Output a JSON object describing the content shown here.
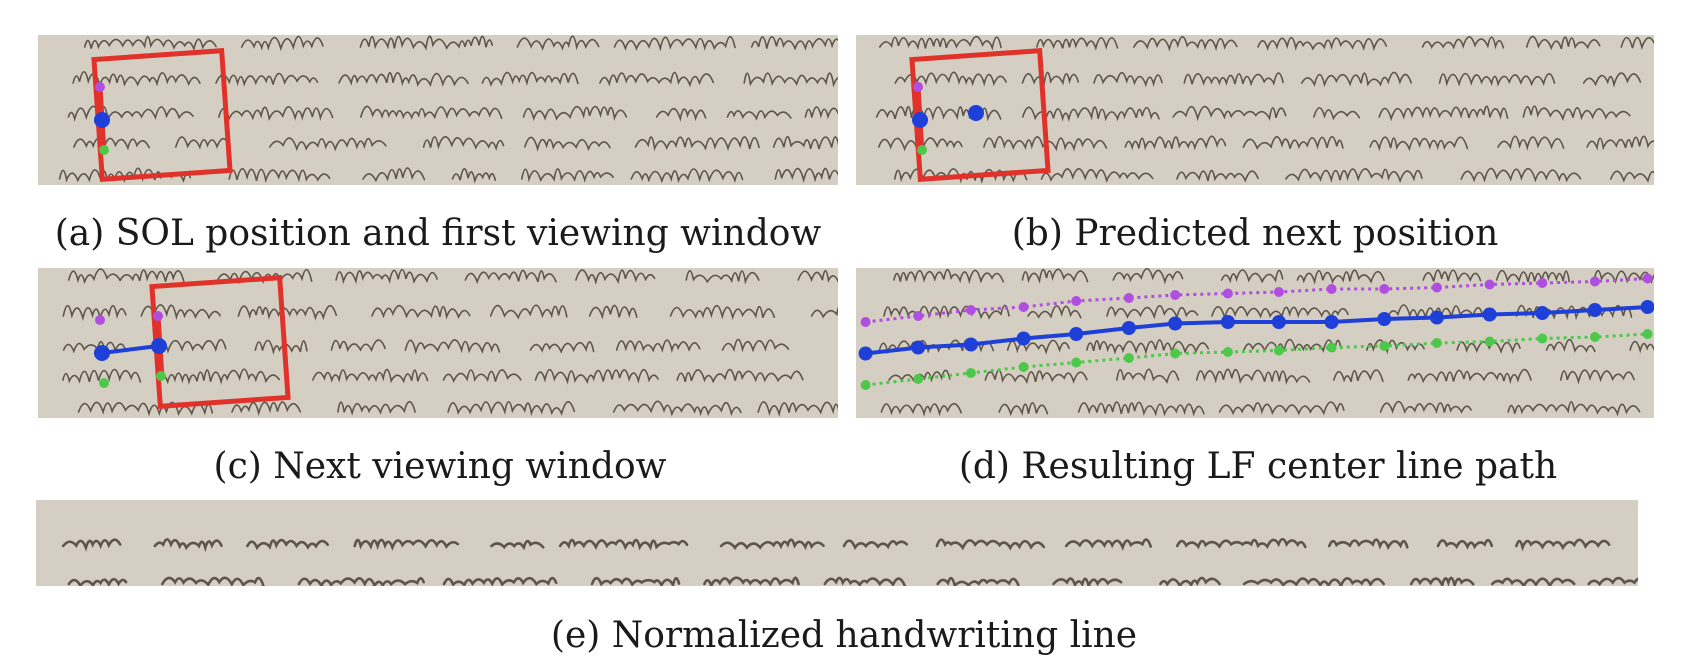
{
  "figure": {
    "captions": {
      "a": "(a) SOL position and first viewing window",
      "b": "(b) Predicted next position",
      "c": "(c) Next viewing window",
      "d": "(d) Resulting LF center line path",
      "e": "(e) Normalized handwriting line"
    },
    "colors": {
      "window": "#e0322a",
      "center": "#1e3fd8",
      "upper": "#b04ee0",
      "lower": "#4ec84a",
      "paper": "#d4cfc2",
      "ink": "#4a3f35"
    },
    "path_points": {
      "center": [
        [
          0.012,
          0.57
        ],
        [
          0.078,
          0.53
        ],
        [
          0.144,
          0.51
        ],
        [
          0.21,
          0.47
        ],
        [
          0.276,
          0.44
        ],
        [
          0.342,
          0.4
        ],
        [
          0.4,
          0.37
        ],
        [
          0.466,
          0.36
        ],
        [
          0.53,
          0.36
        ],
        [
          0.596,
          0.36
        ],
        [
          0.662,
          0.34
        ],
        [
          0.728,
          0.33
        ],
        [
          0.794,
          0.31
        ],
        [
          0.86,
          0.3
        ],
        [
          0.926,
          0.28
        ],
        [
          0.992,
          0.26
        ]
      ],
      "upper": [
        [
          0.012,
          0.36
        ],
        [
          0.078,
          0.32
        ],
        [
          0.144,
          0.28
        ],
        [
          0.21,
          0.26
        ],
        [
          0.276,
          0.22
        ],
        [
          0.342,
          0.2
        ],
        [
          0.4,
          0.18
        ],
        [
          0.466,
          0.17
        ],
        [
          0.53,
          0.16
        ],
        [
          0.596,
          0.14
        ],
        [
          0.662,
          0.14
        ],
        [
          0.728,
          0.13
        ],
        [
          0.794,
          0.11
        ],
        [
          0.86,
          0.1
        ],
        [
          0.926,
          0.09
        ],
        [
          0.992,
          0.07
        ]
      ],
      "lower": [
        [
          0.012,
          0.78
        ],
        [
          0.078,
          0.74
        ],
        [
          0.144,
          0.7
        ],
        [
          0.21,
          0.66
        ],
        [
          0.276,
          0.63
        ],
        [
          0.342,
          0.6
        ],
        [
          0.4,
          0.57
        ],
        [
          0.466,
          0.56
        ],
        [
          0.53,
          0.55
        ],
        [
          0.596,
          0.53
        ],
        [
          0.662,
          0.52
        ],
        [
          0.728,
          0.5
        ],
        [
          0.794,
          0.49
        ],
        [
          0.86,
          0.47
        ],
        [
          0.926,
          0.46
        ],
        [
          0.992,
          0.44
        ]
      ]
    }
  }
}
